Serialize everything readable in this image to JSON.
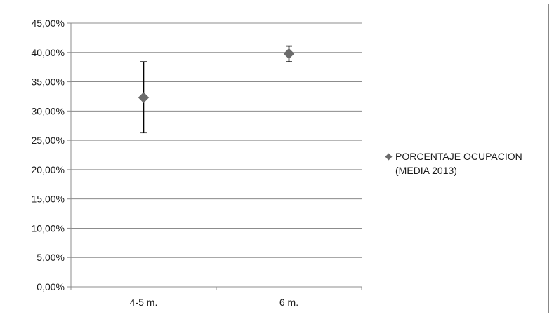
{
  "chart_data": {
    "type": "scatter",
    "categories": [
      "4-5 m.",
      "6 m."
    ],
    "series": [
      {
        "name": "PORCENTAJE OCUPACION (MEDIA 2013)",
        "values": [
          32.3,
          39.8
        ],
        "error_low": [
          26.3,
          38.4
        ],
        "error_high": [
          38.4,
          41.1
        ],
        "marker": "diamond",
        "color": "#6b6b6b"
      }
    ],
    "yticks": [
      "0,00%",
      "5,00%",
      "10,00%",
      "15,00%",
      "20,00%",
      "25,00%",
      "30,00%",
      "35,00%",
      "40,00%",
      "45,00%"
    ],
    "ylim": [
      0,
      45
    ],
    "grid": "horizontal",
    "legend_position": "right"
  },
  "legend": {
    "label_line1": "PORCENTAJE OCUPACION",
    "label_line2": "(MEDIA 2013)"
  }
}
